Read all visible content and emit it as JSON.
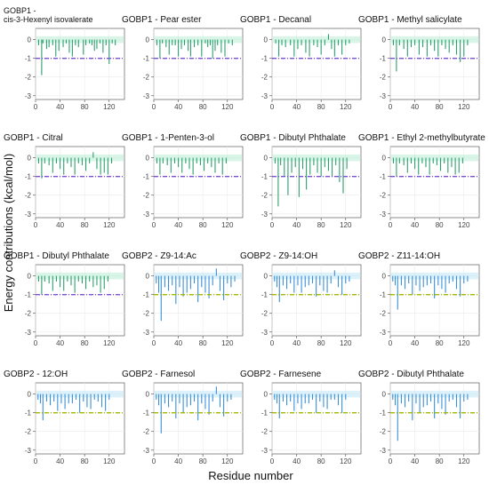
{
  "figure": {
    "ylabel": "Energy contributions (kcal/mol)",
    "xlabel": "Residue number",
    "x_ticks": [
      0,
      40,
      80,
      120
    ],
    "y_ticks": [
      0,
      -1,
      -2,
      -3
    ],
    "xlim": [
      0,
      145
    ],
    "ylim": [
      -3.2,
      0.6
    ]
  },
  "colors": {
    "gobp1_bar": "#2e9e6e",
    "gobp1_fill": "#b8ecd6",
    "gobp1_threshold": "#7b4fd6",
    "gobp2_bar": "#3a8fd8",
    "gobp2_fill": "#bfe6f6",
    "gobp2_threshold": "#a3b800",
    "grid": "#ebebeb",
    "axis": "#444444"
  },
  "chart_data": [
    {
      "type": "bar",
      "title": "GOBP1 - cis-3-Hexenyl isovalerate",
      "title_lines": [
        "GOBP1 -",
        "cis-3-Hexenyl isovalerate"
      ],
      "threshold": -1.0,
      "x": [
        5,
        10,
        12,
        18,
        22,
        28,
        33,
        38,
        45,
        50,
        55,
        60,
        65,
        70,
        78,
        82,
        88,
        92,
        96,
        100,
        105,
        110,
        115,
        120,
        125,
        130
      ],
      "values": [
        -0.3,
        -1.9,
        -0.2,
        -0.5,
        -0.4,
        -0.3,
        -0.9,
        -0.6,
        -0.4,
        -0.2,
        -0.7,
        -0.9,
        -0.3,
        -0.4,
        -0.8,
        -0.3,
        -0.2,
        -0.3,
        -0.6,
        -0.5,
        -0.2,
        -0.7,
        -0.3,
        -1.3,
        -0.2,
        -0.3
      ]
    },
    {
      "type": "bar",
      "title": "GOBP1 - Pear ester",
      "threshold": -1.0,
      "x": [
        5,
        10,
        14,
        20,
        25,
        30,
        35,
        40,
        45,
        50,
        56,
        60,
        66,
        72,
        78,
        84,
        88,
        92,
        96,
        100,
        104,
        110,
        116,
        122,
        128
      ],
      "values": [
        -0.3,
        -1.0,
        -0.2,
        -0.4,
        -0.8,
        -0.3,
        -0.3,
        -0.9,
        -0.5,
        -0.3,
        -0.6,
        -0.9,
        -0.4,
        -0.3,
        -0.9,
        -0.2,
        -0.4,
        -0.3,
        -1.0,
        -0.6,
        -0.3,
        -0.7,
        -0.9,
        -0.2,
        -0.3
      ]
    },
    {
      "type": "bar",
      "title": "GOBP1 - Decanal",
      "threshold": -1.0,
      "x": [
        6,
        11,
        16,
        22,
        30,
        36,
        42,
        48,
        55,
        61,
        68,
        74,
        80,
        86,
        92,
        97,
        102,
        108,
        114,
        120,
        126
      ],
      "values": [
        -0.2,
        -0.9,
        -0.3,
        -0.4,
        -0.3,
        -0.9,
        -0.5,
        -0.3,
        -0.7,
        -0.9,
        -0.3,
        -0.4,
        -0.8,
        -0.3,
        0.3,
        -0.5,
        -0.9,
        -0.3,
        -0.8,
        -0.3,
        -0.2
      ]
    },
    {
      "type": "bar",
      "title": "GOBP1 - Methyl salicylate",
      "threshold": -1.0,
      "x": [
        5,
        10,
        15,
        22,
        28,
        34,
        40,
        47,
        53,
        60,
        66,
        72,
        78,
        84,
        90,
        96,
        102,
        108,
        114,
        120,
        126
      ],
      "values": [
        -0.3,
        -1.7,
        -0.3,
        -0.5,
        -0.9,
        -0.4,
        -0.3,
        -0.8,
        -0.4,
        -0.9,
        -0.3,
        -0.6,
        -0.9,
        -0.3,
        -0.5,
        -0.7,
        -0.3,
        -0.8,
        -1.2,
        -0.9,
        -0.3
      ]
    },
    {
      "type": "bar",
      "title": "GOBP1 - Citral",
      "threshold": -1.0,
      "x": [
        5,
        10,
        15,
        22,
        28,
        34,
        40,
        46,
        52,
        58,
        64,
        70,
        76,
        82,
        88,
        94,
        100,
        106,
        112,
        118,
        124
      ],
      "values": [
        -0.3,
        -1.1,
        -0.3,
        -0.4,
        -0.8,
        -0.3,
        -0.6,
        -0.9,
        -0.3,
        -0.5,
        -0.9,
        -0.3,
        -0.4,
        -0.7,
        -0.3,
        0.3,
        -0.6,
        -0.9,
        -0.8,
        -0.9,
        -0.3
      ]
    },
    {
      "type": "bar",
      "title": "GOBP1 - 1-Penten-3-ol",
      "threshold": -1.0,
      "x": [
        5,
        10,
        15,
        22,
        28,
        34,
        40,
        46,
        52,
        58,
        64,
        70,
        76,
        82,
        88,
        94,
        100,
        106,
        112,
        118
      ],
      "values": [
        -0.3,
        -0.9,
        -0.3,
        -0.4,
        -0.8,
        -0.3,
        -0.5,
        -0.8,
        -0.3,
        -0.6,
        -0.9,
        -0.3,
        -0.4,
        -0.7,
        -0.3,
        -0.5,
        -0.8,
        -0.3,
        -0.9,
        -0.3
      ]
    },
    {
      "type": "bar",
      "title": "GOBP1 - Dibutyl Phthalate",
      "threshold": -1.0,
      "x": [
        5,
        10,
        14,
        20,
        26,
        32,
        38,
        44,
        50,
        56,
        62,
        68,
        74,
        80,
        86,
        92,
        98,
        104,
        110,
        116,
        122
      ],
      "values": [
        -0.3,
        -2.6,
        -0.4,
        -1.0,
        -2.0,
        -0.8,
        -0.5,
        -2.1,
        -0.6,
        -1.7,
        -0.9,
        -0.4,
        -0.8,
        -1.0,
        -0.5,
        -0.7,
        -1.0,
        -0.4,
        -1.3,
        -1.9,
        -0.6
      ]
    },
    {
      "type": "bar",
      "title": "GOBP1 - Ethyl 2-methylbutyrate",
      "threshold": -1.0,
      "x": [
        5,
        10,
        15,
        22,
        28,
        34,
        40,
        46,
        52,
        58,
        64,
        70,
        76,
        82,
        88,
        94,
        100,
        106,
        112,
        118
      ],
      "values": [
        -0.3,
        -1.0,
        -0.3,
        -0.4,
        -0.8,
        -0.3,
        -0.6,
        -0.9,
        -0.3,
        -0.5,
        -0.9,
        -0.3,
        -0.4,
        -0.7,
        -0.3,
        -0.8,
        -0.5,
        -0.9,
        -0.8,
        -0.3
      ]
    },
    {
      "type": "bar",
      "title": "GOBP1 - Dibutyl Phthalate",
      "threshold": -1.0,
      "x": [
        5,
        10,
        15,
        22,
        28,
        34,
        40,
        46,
        52,
        58,
        64,
        70,
        76,
        82,
        88,
        94,
        100,
        106,
        112,
        118
      ],
      "values": [
        -0.3,
        -1.0,
        -0.3,
        -0.4,
        -0.8,
        -0.3,
        -0.6,
        -0.8,
        -0.3,
        -0.5,
        -0.9,
        -0.3,
        -0.4,
        -0.7,
        -0.3,
        -0.6,
        -0.5,
        -0.9,
        -0.7,
        -0.3
      ]
    },
    {
      "type": "bar",
      "title": "GOBP2 - Z9-14:Ac",
      "threshold": -1.0,
      "x": [
        4,
        8,
        12,
        18,
        24,
        30,
        36,
        42,
        48,
        54,
        60,
        66,
        72,
        78,
        84,
        90,
        96,
        102,
        108,
        114,
        120,
        126,
        132
      ],
      "values": [
        -0.4,
        -0.9,
        -2.4,
        -0.6,
        -0.8,
        -0.5,
        -1.5,
        -0.6,
        -1.1,
        -0.9,
        -0.7,
        -0.4,
        -1.4,
        -0.6,
        -0.9,
        -1.2,
        -0.5,
        0.4,
        -0.8,
        -1.3,
        -0.4,
        -0.6,
        -0.3
      ]
    },
    {
      "type": "bar",
      "title": "GOBP2 - Z9-14:OH",
      "threshold": -1.0,
      "x": [
        4,
        8,
        12,
        18,
        24,
        30,
        36,
        42,
        48,
        54,
        60,
        66,
        72,
        78,
        84,
        90,
        96,
        102,
        108,
        114,
        120,
        126
      ],
      "values": [
        -0.3,
        -0.6,
        -1.4,
        -0.5,
        -0.7,
        -0.4,
        -0.9,
        -0.5,
        -0.9,
        -0.6,
        -0.5,
        -0.4,
        -1.1,
        -0.5,
        -0.8,
        -0.9,
        -0.4,
        0.3,
        -0.6,
        -1.0,
        -0.4,
        -0.3
      ]
    },
    {
      "type": "bar",
      "title": "GOBP2 - Z11-14:OH",
      "threshold": -1.0,
      "x": [
        4,
        8,
        12,
        18,
        24,
        30,
        36,
        42,
        48,
        54,
        60,
        66,
        72,
        78,
        84,
        90,
        96,
        102,
        108,
        114,
        120,
        126
      ],
      "values": [
        -0.3,
        -0.5,
        -1.8,
        -0.5,
        -0.7,
        -0.4,
        -1.0,
        -0.5,
        -0.8,
        -0.6,
        -0.5,
        -0.4,
        -1.2,
        -0.5,
        -0.7,
        -0.9,
        -0.4,
        -0.3,
        -0.7,
        -1.1,
        -0.4,
        -0.3
      ]
    },
    {
      "type": "bar",
      "title": "GOBP2 - 12:OH",
      "threshold": -1.0,
      "x": [
        4,
        8,
        12,
        18,
        24,
        30,
        36,
        42,
        48,
        54,
        60,
        66,
        72,
        78,
        84,
        90,
        96,
        102,
        108,
        114,
        120
      ],
      "values": [
        -0.3,
        -0.5,
        -1.4,
        -0.4,
        -0.6,
        -0.4,
        -0.9,
        -0.5,
        -0.8,
        -0.5,
        -0.5,
        -0.3,
        -1.0,
        -0.4,
        -0.7,
        -0.8,
        -0.3,
        -0.4,
        -0.7,
        -0.9,
        -0.3
      ]
    },
    {
      "type": "bar",
      "title": "GOBP2 - Farnesol",
      "threshold": -1.0,
      "x": [
        4,
        8,
        12,
        18,
        24,
        30,
        36,
        42,
        48,
        54,
        60,
        66,
        72,
        78,
        84,
        90,
        96,
        102,
        108,
        114,
        120,
        126
      ],
      "values": [
        -0.3,
        -0.6,
        -2.1,
        -0.5,
        -0.7,
        -0.4,
        -1.3,
        -0.5,
        -1.0,
        -0.7,
        -0.6,
        -0.4,
        -1.4,
        -0.5,
        -0.8,
        -1.1,
        -0.4,
        0.4,
        -0.7,
        -1.2,
        -0.4,
        -0.3
      ]
    },
    {
      "type": "bar",
      "title": "GOBP2 - Farnesene",
      "threshold": -1.0,
      "x": [
        4,
        8,
        12,
        18,
        24,
        30,
        36,
        42,
        48,
        54,
        60,
        66,
        72,
        78,
        84,
        90,
        96,
        102,
        108,
        114,
        120
      ],
      "values": [
        -0.3,
        -0.5,
        -1.3,
        -0.4,
        -0.6,
        -0.4,
        -0.9,
        -0.5,
        -0.8,
        -0.5,
        -0.5,
        -0.3,
        -1.0,
        -0.4,
        -0.7,
        -0.8,
        -0.3,
        -0.3,
        -0.6,
        -1.0,
        -0.3
      ]
    },
    {
      "type": "bar",
      "title": "GOBP2 - Dibutyl Phthalate",
      "threshold": -1.0,
      "x": [
        4,
        8,
        12,
        18,
        24,
        30,
        36,
        42,
        48,
        54,
        60,
        66,
        72,
        78,
        84,
        90,
        96,
        102,
        108,
        114,
        120,
        126
      ],
      "values": [
        -0.3,
        -0.6,
        -2.5,
        -0.5,
        -0.7,
        -0.4,
        -1.4,
        -0.5,
        -1.0,
        -0.7,
        -0.6,
        -0.4,
        -1.3,
        -0.5,
        -0.8,
        -1.1,
        -0.4,
        -0.3,
        -0.7,
        -1.3,
        -0.4,
        -0.3
      ]
    }
  ]
}
